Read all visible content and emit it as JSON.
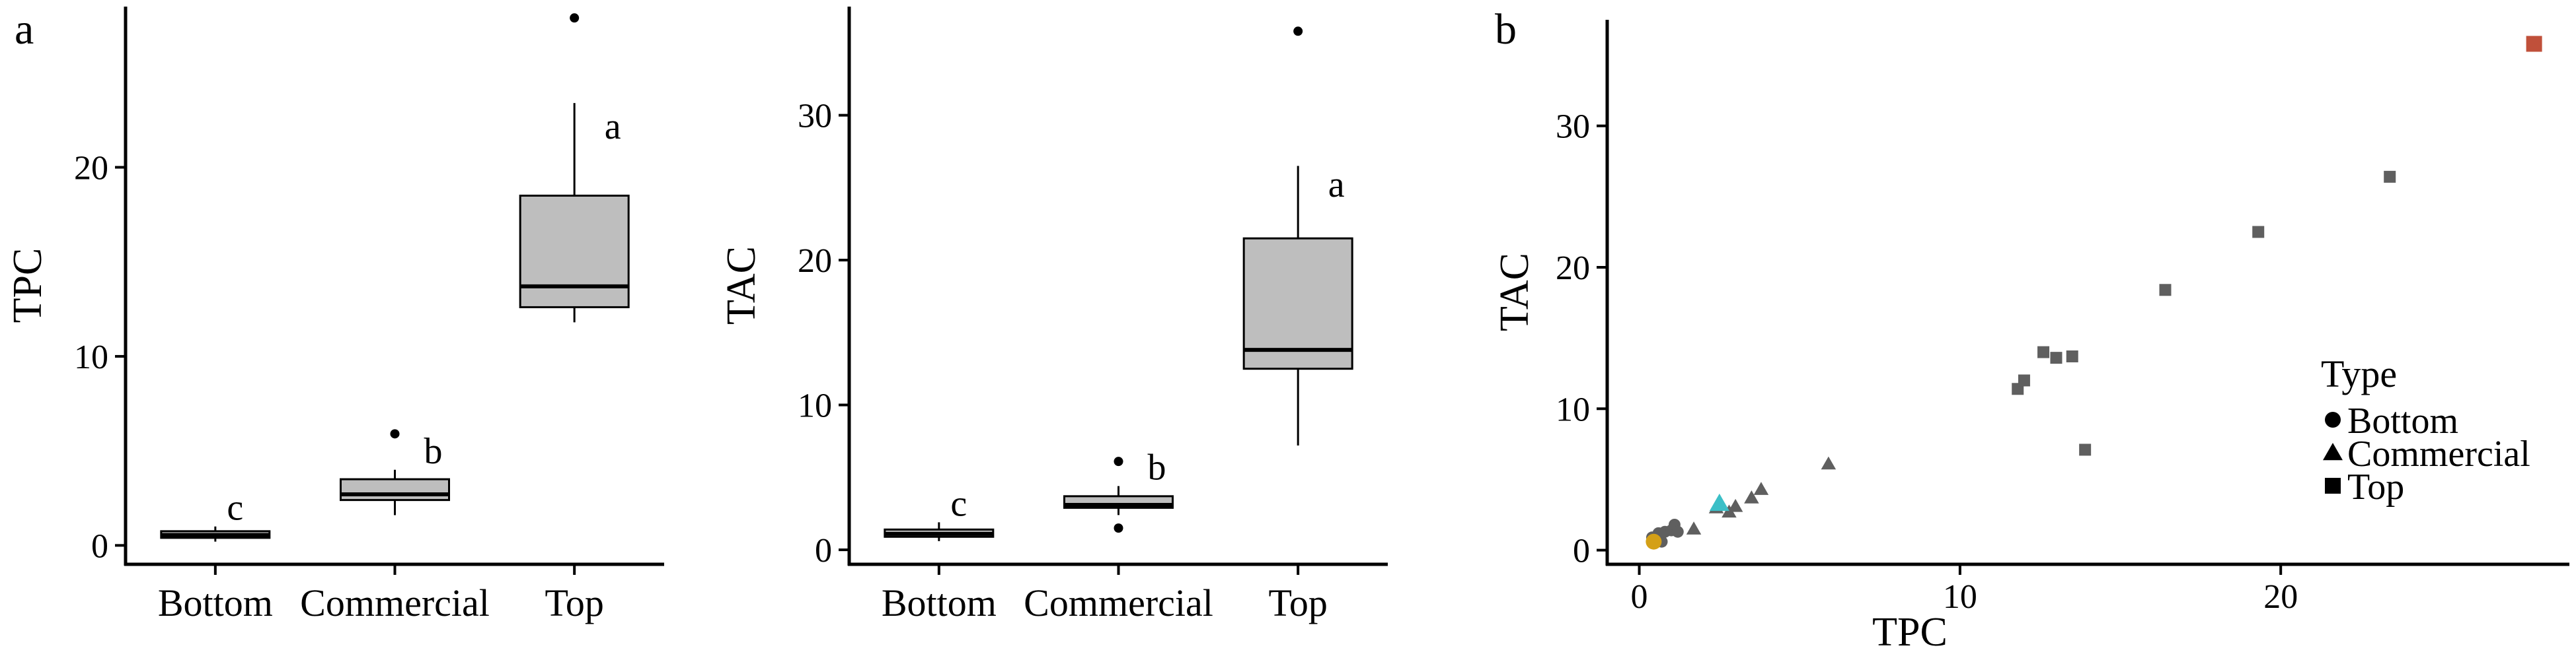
{
  "panels": {
    "a": "a",
    "b": "b"
  },
  "chart_data": [
    {
      "type": "box",
      "panel": "a",
      "ylabel": "TPC",
      "xlabel": "",
      "categories": [
        "Bottom",
        "Commercial",
        "Top"
      ],
      "ylim": [
        -1,
        28.5
      ],
      "yticks": [
        0,
        10,
        20
      ],
      "boxes": [
        {
          "category": "Bottom",
          "whisker_low": 0.2,
          "q1": 0.4,
          "median": 0.55,
          "q3": 0.75,
          "whisker_high": 1.0,
          "outliers": [],
          "letter": "c"
        },
        {
          "category": "Commercial",
          "whisker_low": 1.6,
          "q1": 2.4,
          "median": 2.7,
          "q3": 3.5,
          "whisker_high": 4.0,
          "outliers": [
            5.9
          ],
          "letter": "b"
        },
        {
          "category": "Top",
          "whisker_low": 11.8,
          "q1": 12.6,
          "median": 13.7,
          "q3": 18.5,
          "whisker_high": 23.4,
          "outliers": [
            27.9
          ],
          "letter": "a"
        }
      ]
    },
    {
      "type": "box",
      "panel": "a2",
      "ylabel": "TAC",
      "xlabel": "",
      "categories": [
        "Bottom",
        "Commercial",
        "Top"
      ],
      "ylim": [
        -1,
        37.5
      ],
      "yticks": [
        0,
        10,
        20,
        30
      ],
      "boxes": [
        {
          "category": "Bottom",
          "whisker_low": 0.6,
          "q1": 0.9,
          "median": 1.1,
          "q3": 1.4,
          "whisker_high": 1.9,
          "outliers": [],
          "letter": "c"
        },
        {
          "category": "Commercial",
          "whisker_low": 2.4,
          "q1": 2.9,
          "median": 3.1,
          "q3": 3.7,
          "whisker_high": 4.4,
          "outliers": [
            6.1,
            1.5
          ],
          "letter": "b"
        },
        {
          "category": "Top",
          "whisker_low": 7.2,
          "q1": 12.5,
          "median": 13.8,
          "q3": 21.5,
          "whisker_high": 26.5,
          "outliers": [
            35.8
          ],
          "letter": "a"
        }
      ]
    },
    {
      "type": "scatter",
      "panel": "b",
      "xlabel": "TPC",
      "ylabel": "TAC",
      "xlim": [
        -1,
        29
      ],
      "ylim": [
        -1,
        37.5
      ],
      "xticks": [
        0,
        10,
        20
      ],
      "yticks": [
        0,
        10,
        20,
        30
      ],
      "legend": {
        "title": "Type",
        "position": "right",
        "entries": [
          {
            "label": "Bottom",
            "shape": "circle"
          },
          {
            "label": "Commercial",
            "shape": "triangle"
          },
          {
            "label": "Top",
            "shape": "square"
          }
        ]
      },
      "colors": {
        "default": "#5f5f5f",
        "bottom_highlight": "#d4a017",
        "commercial_highlight": "#3bbfc7",
        "top_highlight": "#c0503a"
      },
      "points": [
        {
          "type": "Bottom",
          "x": 0.4,
          "y": 0.9
        },
        {
          "type": "Bottom",
          "x": 0.5,
          "y": 0.7
        },
        {
          "type": "Bottom",
          "x": 0.6,
          "y": 1.2
        },
        {
          "type": "Bottom",
          "x": 0.7,
          "y": 0.6
        },
        {
          "type": "Bottom",
          "x": 0.8,
          "y": 1.3
        },
        {
          "type": "Bottom",
          "x": 1.0,
          "y": 1.4
        },
        {
          "type": "Bottom",
          "x": 1.1,
          "y": 1.8
        },
        {
          "type": "Bottom",
          "x": 1.2,
          "y": 1.3
        },
        {
          "type": "Bottom",
          "x": 0.45,
          "y": 0.6,
          "highlight": true
        },
        {
          "type": "Commercial",
          "x": 1.7,
          "y": 1.5
        },
        {
          "type": "Commercial",
          "x": 2.4,
          "y": 3.0
        },
        {
          "type": "Commercial",
          "x": 2.8,
          "y": 2.7
        },
        {
          "type": "Commercial",
          "x": 3.0,
          "y": 3.1
        },
        {
          "type": "Commercial",
          "x": 3.5,
          "y": 3.7
        },
        {
          "type": "Commercial",
          "x": 3.8,
          "y": 4.3
        },
        {
          "type": "Commercial",
          "x": 5.9,
          "y": 6.1
        },
        {
          "type": "Commercial",
          "x": 2.5,
          "y": 3.3,
          "highlight": true
        },
        {
          "type": "Top",
          "x": 11.8,
          "y": 11.4
        },
        {
          "type": "Top",
          "x": 12.0,
          "y": 12.0
        },
        {
          "type": "Top",
          "x": 12.6,
          "y": 14.0
        },
        {
          "type": "Top",
          "x": 13.0,
          "y": 13.6
        },
        {
          "type": "Top",
          "x": 13.5,
          "y": 13.7
        },
        {
          "type": "Top",
          "x": 13.9,
          "y": 7.1
        },
        {
          "type": "Top",
          "x": 16.4,
          "y": 18.4
        },
        {
          "type": "Top",
          "x": 19.3,
          "y": 22.5
        },
        {
          "type": "Top",
          "x": 23.4,
          "y": 26.4
        },
        {
          "type": "Top",
          "x": 27.9,
          "y": 35.8,
          "highlight": true
        }
      ]
    }
  ]
}
